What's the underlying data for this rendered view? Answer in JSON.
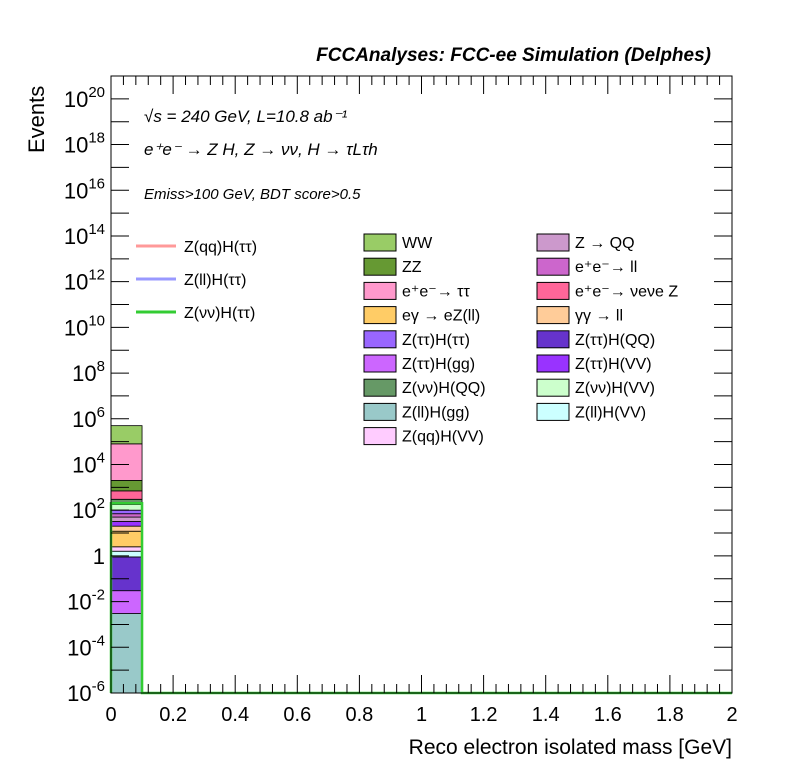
{
  "chart_data": {
    "type": "bar",
    "title": "FCCAnalyses: FCC-ee Simulation (Delphes)",
    "xlabel": "Reco electron isolated mass [GeV]",
    "ylabel": "Events",
    "x_range": [
      0,
      2
    ],
    "y_range": [
      1e-06,
      1e+21
    ],
    "y_scale": "log",
    "x_ticks": [
      "0",
      "0.2",
      "0.4",
      "0.6",
      "0.8",
      "1",
      "1.2",
      "1.4",
      "1.6",
      "1.8",
      "2"
    ],
    "y_ticks": [
      {
        "mant": "10",
        "exp": "-6",
        "value": 1e-06
      },
      {
        "mant": "10",
        "exp": "-4",
        "value": 0.0001
      },
      {
        "mant": "10",
        "exp": "-2",
        "value": 0.01
      },
      {
        "mant": "1",
        "exp": "",
        "value": 1
      },
      {
        "mant": "10",
        "exp": "2",
        "value": 100.0
      },
      {
        "mant": "10",
        "exp": "4",
        "value": 10000.0
      },
      {
        "mant": "10",
        "exp": "6",
        "value": 1000000.0
      },
      {
        "mant": "10",
        "exp": "8",
        "value": 100000000.0
      },
      {
        "mant": "10",
        "exp": "10",
        "value": 10000000000.0
      },
      {
        "mant": "10",
        "exp": "12",
        "value": 1000000000000.0
      },
      {
        "mant": "10",
        "exp": "14",
        "value": 100000000000000.0
      },
      {
        "mant": "10",
        "exp": "16",
        "value": 1e+16
      },
      {
        "mant": "10",
        "exp": "18",
        "value": 1e+18
      },
      {
        "mant": "10",
        "exp": "20",
        "value": 1e+20
      }
    ],
    "annotations": {
      "line1": "√s = 240 GeV, L=10.8 ab⁻¹",
      "line2": "e⁺e⁻ → Z H, Z → νν, H → τLτh",
      "line3": "Emiss>100 GeV, BDT score>0.5"
    },
    "bin": {
      "x_low": 0,
      "x_high": 0.1
    },
    "stack": [
      {
        "name": "Z(ll)H(gg)",
        "color": "#99c9c9",
        "low": 1e-06,
        "high": 0.003
      },
      {
        "name": "Z(ττ)H(gg)",
        "color": "#cc66ff",
        "low": 0.003,
        "high": 0.03
      },
      {
        "name": "Z(ττ)H(QQ)",
        "color": "#6633cc",
        "low": 0.03,
        "high": 0.9
      },
      {
        "name": "Z(ll)H(VV)",
        "color": "#ccffff",
        "low": 0.9,
        "high": 1.6
      },
      {
        "name": "Z(qq)H(VV)",
        "color": "#ffccff",
        "low": 1.6,
        "high": 2.5
      },
      {
        "name": "eγ → eZ(ll)",
        "color": "#ffcc66",
        "low": 2.5,
        "high": 12
      },
      {
        "name": "γγ → ll",
        "color": "#ffcc99",
        "low": 12,
        "high": 20
      },
      {
        "name": "Z(ττ)H(VV)",
        "color": "#9933ff",
        "low": 20,
        "high": 32
      },
      {
        "name": "Z → QQ",
        "color": "#cc99cc",
        "low": 32,
        "high": 50
      },
      {
        "name": "e⁺e⁻→ ll",
        "color": "#cc66cc",
        "low": 50,
        "high": 70
      },
      {
        "name": "Z(ττ)H(ττ)",
        "color": "#9966ff",
        "low": 70,
        "high": 100
      },
      {
        "name": "Z(νν)H(VV)",
        "color": "#ccffcc",
        "low": 100,
        "high": 180
      },
      {
        "name": "Z(νν)H(QQ)",
        "color": "#669966",
        "low": 180,
        "high": 300
      },
      {
        "name": "e⁺e⁻→ νeνe Z",
        "color": "#ff6699",
        "low": 300,
        "high": 700
      },
      {
        "name": "ZZ",
        "color": "#669933",
        "low": 700,
        "high": 2000
      },
      {
        "name": "e⁺e⁻→ ττ",
        "color": "#ff99cc",
        "low": 2000,
        "high": 80000
      },
      {
        "name": "WW",
        "color": "#99cc66",
        "low": 80000,
        "high": 500000
      }
    ],
    "signals": [
      {
        "name": "Z(qq)H(ττ)",
        "color": "#ff9999",
        "value": null
      },
      {
        "name": "Z(ll)H(ττ)",
        "color": "#9999ff",
        "value": null
      },
      {
        "name": "Z(νν)H(ττ)",
        "color": "#33cc33",
        "value": 200
      }
    ],
    "legend_col1": [
      {
        "name": "WW",
        "color": "#99cc66"
      },
      {
        "name": "ZZ",
        "color": "#669933"
      },
      {
        "name": "e⁺e⁻→ ττ",
        "color": "#ff99cc"
      },
      {
        "name": "eγ → eZ(ll)",
        "color": "#ffcc66"
      },
      {
        "name": "Z(ττ)H(ττ)",
        "color": "#9966ff"
      },
      {
        "name": "Z(ττ)H(gg)",
        "color": "#cc66ff"
      },
      {
        "name": "Z(νν)H(QQ)",
        "color": "#669966"
      },
      {
        "name": "Z(ll)H(gg)",
        "color": "#99c9c9"
      },
      {
        "name": "Z(qq)H(VV)",
        "color": "#ffccff"
      }
    ],
    "legend_col2": [
      {
        "name": "Z → QQ",
        "color": "#cc99cc"
      },
      {
        "name": "e⁺e⁻→ ll",
        "color": "#cc66cc"
      },
      {
        "name": "e⁺e⁻→ νeνe Z",
        "color": "#ff6699"
      },
      {
        "name": "γγ → ll",
        "color": "#ffcc99"
      },
      {
        "name": "Z(ττ)H(QQ)",
        "color": "#6633cc"
      },
      {
        "name": "Z(ττ)H(VV)",
        "color": "#9933ff"
      },
      {
        "name": "Z(νν)H(VV)",
        "color": "#ccffcc"
      },
      {
        "name": "Z(ll)H(VV)",
        "color": "#ccffff"
      }
    ]
  }
}
